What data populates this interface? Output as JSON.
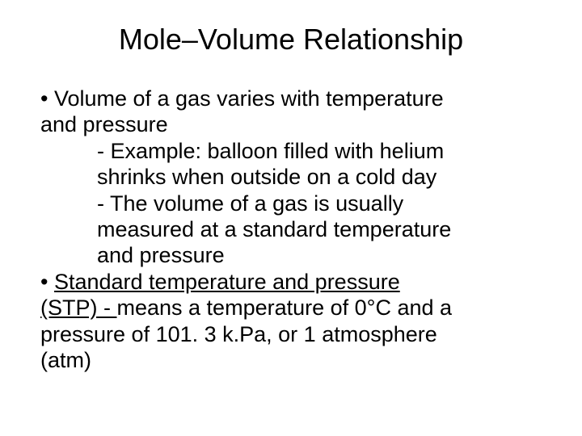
{
  "title": "Mole–Volume Relationship",
  "bullet1": {
    "line1": "• Volume of a gas varies with temperature",
    "line2": "and pressure"
  },
  "sub1": {
    "line1": "- Example: balloon filled with helium",
    "line2": "shrinks when outside on a cold day"
  },
  "sub2": {
    "line1": "- The volume of a gas is usually",
    "line2": "measured at a standard temperature",
    "line3": "and pressure"
  },
  "bullet2": {
    "prefix": "• ",
    "underlined1": "Standard temperature and pressure",
    "underlined2": "(STP) - ",
    "suffix": " means a temperature of 0°C and a",
    "line3": "pressure of 101. 3 k.Pa, or 1 atmosphere",
    "line4": "(atm)"
  },
  "colors": {
    "background": "#ffffff",
    "text": "#000000"
  },
  "typography": {
    "title_fontsize": 36,
    "body_fontsize": 27,
    "font_family": "Arial"
  }
}
